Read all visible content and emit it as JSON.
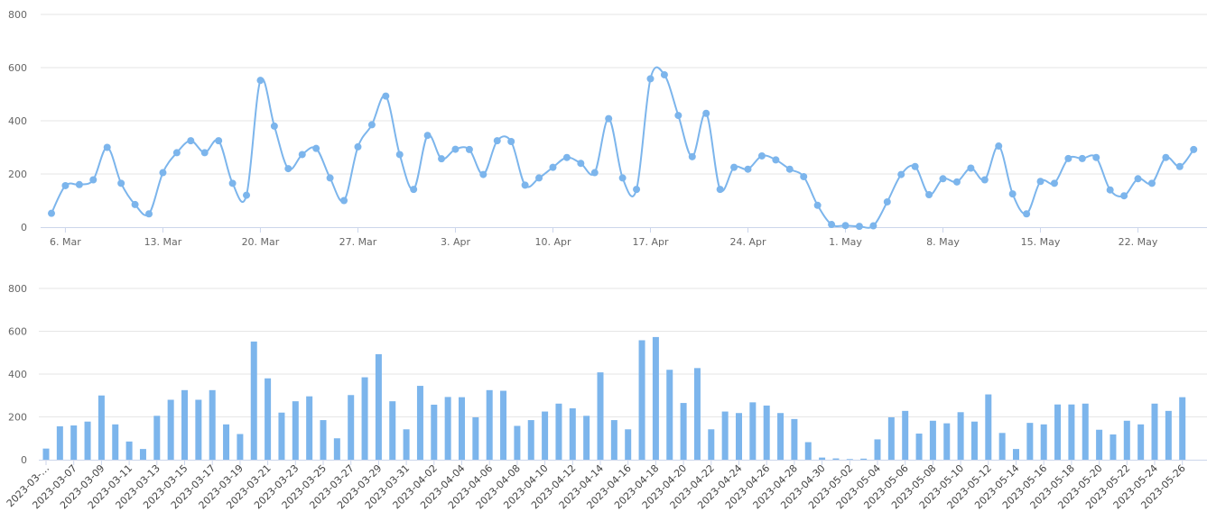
{
  "chart_data": [
    {
      "type": "line",
      "smooth": true,
      "color": "#7cb5ec",
      "x_start": "2023-03-05",
      "ylim": [
        0,
        800
      ],
      "y_ticks": [
        "0",
        "200",
        "400",
        "600",
        "800"
      ],
      "x_tick_labels": [
        "6. Mar",
        "13. Mar",
        "20. Mar",
        "27. Mar",
        "3. Apr",
        "10. Apr",
        "17. Apr",
        "24. Apr",
        "1. May",
        "8. May",
        "15. May",
        "22. May"
      ],
      "grid": true,
      "legend": "none"
    },
    {
      "type": "bar",
      "color": "#7cb5ec",
      "ylim": [
        0,
        800
      ],
      "y_ticks": [
        "0",
        "200",
        "400",
        "600",
        "800"
      ],
      "x_tick_labels": [
        "2023-03-…",
        "2023-03-07",
        "2023-03-09",
        "2023-03-11",
        "2023-03-13",
        "2023-03-15",
        "2023-03-17",
        "2023-03-19",
        "2023-03-21",
        "2023-03-23",
        "2023-03-25",
        "2023-03-27",
        "2023-03-29",
        "2023-03-31",
        "2023-04-02",
        "2023-04-04",
        "2023-04-06",
        "2023-04-08",
        "2023-04-10",
        "2023-04-12",
        "2023-04-14",
        "2023-04-16",
        "2023-04-18",
        "2023-04-20",
        "2023-04-22",
        "2023-04-24",
        "2023-04-26",
        "2023-04-28",
        "2023-04-30",
        "2023-05-02",
        "2023-05-04",
        "2023-05-06",
        "2023-05-08",
        "2023-05-10",
        "2023-05-12",
        "2023-05-14",
        "2023-05-16",
        "2023-05-18",
        "2023-05-20",
        "2023-05-22",
        "2023-05-24",
        "2023-05-26"
      ],
      "grid": true,
      "legend": "none"
    }
  ],
  "series_values": [
    52,
    156,
    160,
    178,
    300,
    165,
    85,
    50,
    205,
    280,
    325,
    280,
    325,
    165,
    120,
    552,
    380,
    220,
    273,
    296,
    185,
    100,
    302,
    385,
    493,
    273,
    142,
    345,
    257,
    293,
    292,
    198,
    325,
    322,
    158,
    185,
    225,
    262,
    240,
    205,
    408,
    185,
    142,
    558,
    573,
    420,
    265,
    428,
    142,
    225,
    218,
    268,
    253,
    218,
    190,
    82,
    10,
    6,
    3,
    5,
    95,
    198,
    228,
    122,
    182,
    170,
    222,
    178,
    305,
    125,
    50,
    172,
    165,
    258,
    258,
    262,
    140,
    118,
    182,
    165,
    262,
    228,
    292
  ]
}
